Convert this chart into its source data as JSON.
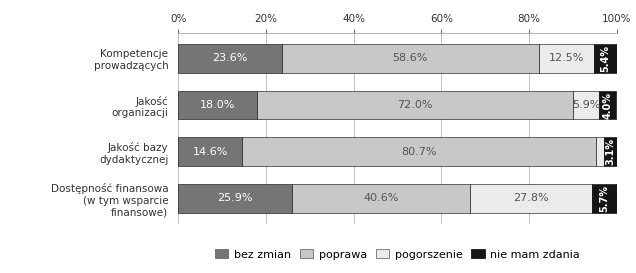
{
  "categories": [
    "Kompetencje\nprowadzących",
    "Jakość\norganizacji",
    "Jakość bazy\ndydaktycznej",
    "Dostępność finansowa\n(w tym wsparcie\nfinansowe)"
  ],
  "series": {
    "bez zmian": [
      23.6,
      18.0,
      14.6,
      25.9
    ],
    "poprawa": [
      58.6,
      72.0,
      80.7,
      40.6
    ],
    "pogorszenie": [
      12.5,
      5.9,
      1.7,
      27.8
    ],
    "nie mam zdania": [
      5.4,
      4.0,
      3.1,
      5.7
    ]
  },
  "colors": {
    "bez zmian": "#757575",
    "poprawa": "#c8c8c8",
    "pogorszenie": "#ebebeb",
    "nie mam zdania": "#151515"
  },
  "text_colors": {
    "bez zmian": "#ffffff",
    "poprawa": "#555555",
    "pogorszenie": "#555555",
    "nie mam zdania": "#ffffff"
  },
  "xlim": [
    0,
    100
  ],
  "xticks": [
    0,
    20,
    40,
    60,
    80,
    100
  ],
  "xticklabels": [
    "0%",
    "20%",
    "40%",
    "60%",
    "80%",
    "100%"
  ],
  "bar_height": 0.62,
  "edge_color": "#000000",
  "background_color": "#ffffff",
  "legend_labels": [
    "bez zmian",
    "poprawa",
    "pogorszenie",
    "nie mam zdania"
  ],
  "font_size_labels": 8,
  "font_size_ticks": 7.5,
  "font_size_legend": 8
}
